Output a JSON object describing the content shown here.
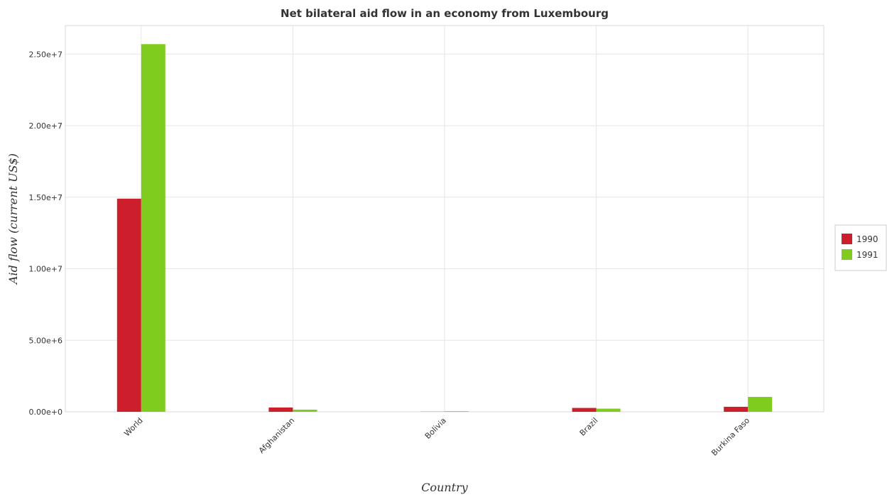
{
  "chart_data": {
    "type": "bar",
    "title": "Net bilateral aid flow in an economy from Luxembourg",
    "xlabel": "Country",
    "ylabel": "Aid flow (current US$)",
    "categories": [
      "World",
      "Afghanistan",
      "Bolivia",
      "Brazil",
      "Burkina Faso"
    ],
    "series": [
      {
        "name": "1990",
        "color": "#cc1f2b",
        "values": [
          14900000,
          300000,
          10000,
          270000,
          350000
        ]
      },
      {
        "name": "1991",
        "color": "#7fcc1f",
        "values": [
          25700000,
          150000,
          40000,
          220000,
          1040000
        ]
      }
    ],
    "ylim": [
      0,
      27000000
    ],
    "yticks": [
      0,
      5000000,
      10000000,
      15000000,
      20000000,
      25000000
    ],
    "ytick_labels": [
      "0.00e+0",
      "5.00e+6",
      "1.00e+7",
      "1.50e+7",
      "2.00e+7",
      "2.50e+7"
    ],
    "grid": true,
    "legend_position": "right"
  }
}
